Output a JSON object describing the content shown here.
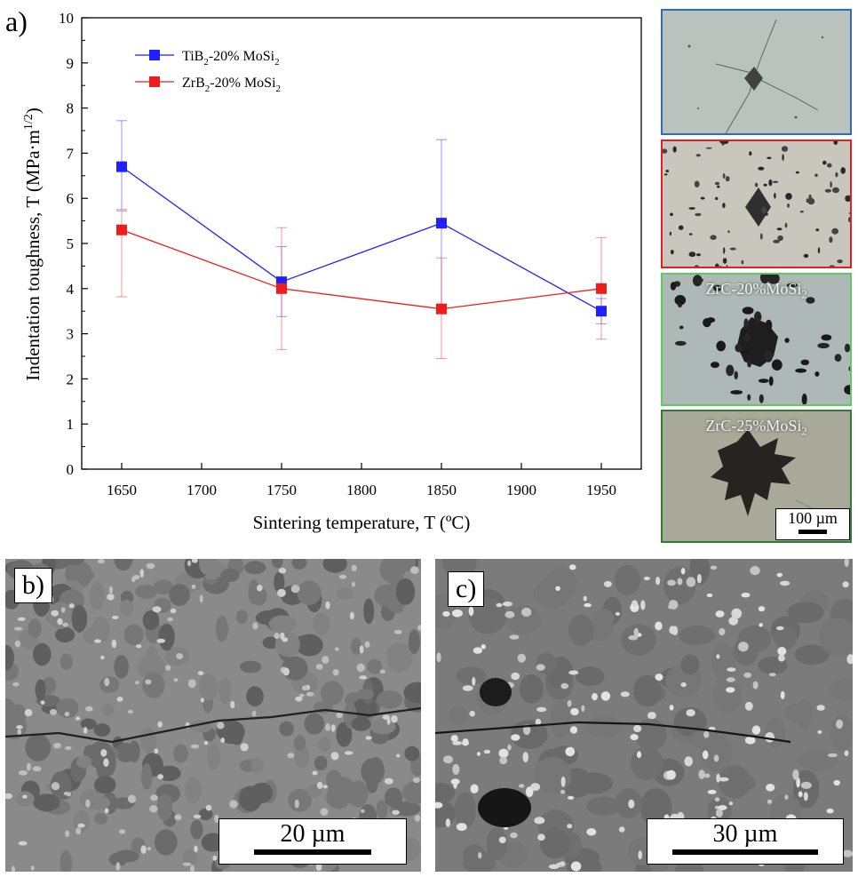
{
  "panel_a_label": "a)",
  "panel_b_label": "b)",
  "panel_c_label": "c)",
  "chart_data": {
    "type": "line",
    "xlabel": "Sintering temperature, T (ºC)",
    "ylabel": "Indentation toughness, T (MPa·m1/2)",
    "x": [
      1650,
      1750,
      1850,
      1950
    ],
    "xlim": [
      1625,
      1975
    ],
    "ylim": [
      0,
      10
    ],
    "xticks": [
      "1650",
      "1700",
      "1750",
      "1800",
      "1850",
      "1900",
      "1950"
    ],
    "yticks": [
      "0",
      "1",
      "2",
      "3",
      "4",
      "5",
      "6",
      "7",
      "8",
      "9",
      "10"
    ],
    "legend_position": "top-left",
    "series": [
      {
        "name": "TiB2-20% MoSi2",
        "color": "#1f1fff",
        "values": [
          6.7,
          4.15,
          5.45,
          3.5
        ],
        "err_low": [
          5.75,
          3.38,
          3.6,
          3.22
        ],
        "err_high": [
          7.72,
          4.93,
          7.3,
          3.78
        ]
      },
      {
        "name": "ZrB2-20% MoSi2",
        "color": "#ee1c1c",
        "values": [
          5.3,
          4.0,
          3.55,
          4.0
        ],
        "err_low": [
          3.82,
          2.65,
          2.45,
          2.88
        ],
        "err_high": [
          5.72,
          5.35,
          4.68,
          5.13
        ]
      }
    ]
  },
  "legend": {
    "s1_main": "TiB",
    "s1_sub": "2",
    "s1_rest": "-20% MoSi",
    "s1_sub2": "2",
    "s2_main": "ZrB",
    "s2_sub": "2",
    "s2_rest": "-20% MoSi",
    "s2_sub2": "2"
  },
  "ylabel_parts": {
    "main": "Indentation toughness, T (MPa·m",
    "sup": "1/2",
    "close": ")"
  },
  "thumbnails": [
    {
      "caption": "",
      "border_color": "#2e6db4"
    },
    {
      "caption": "",
      "border_color": "#e02020"
    },
    {
      "caption_main": "ZrC-20%MoSi",
      "caption_sub": "2",
      "border_color": "#5ec95e"
    },
    {
      "caption_main": "ZrC-25%MoSi",
      "caption_sub": "2",
      "border_color": "#2f7d32"
    }
  ],
  "thumb_scale_bar": "100 µm",
  "micro_b_scale_bar": "20 µm",
  "micro_c_scale_bar": "30 µm"
}
